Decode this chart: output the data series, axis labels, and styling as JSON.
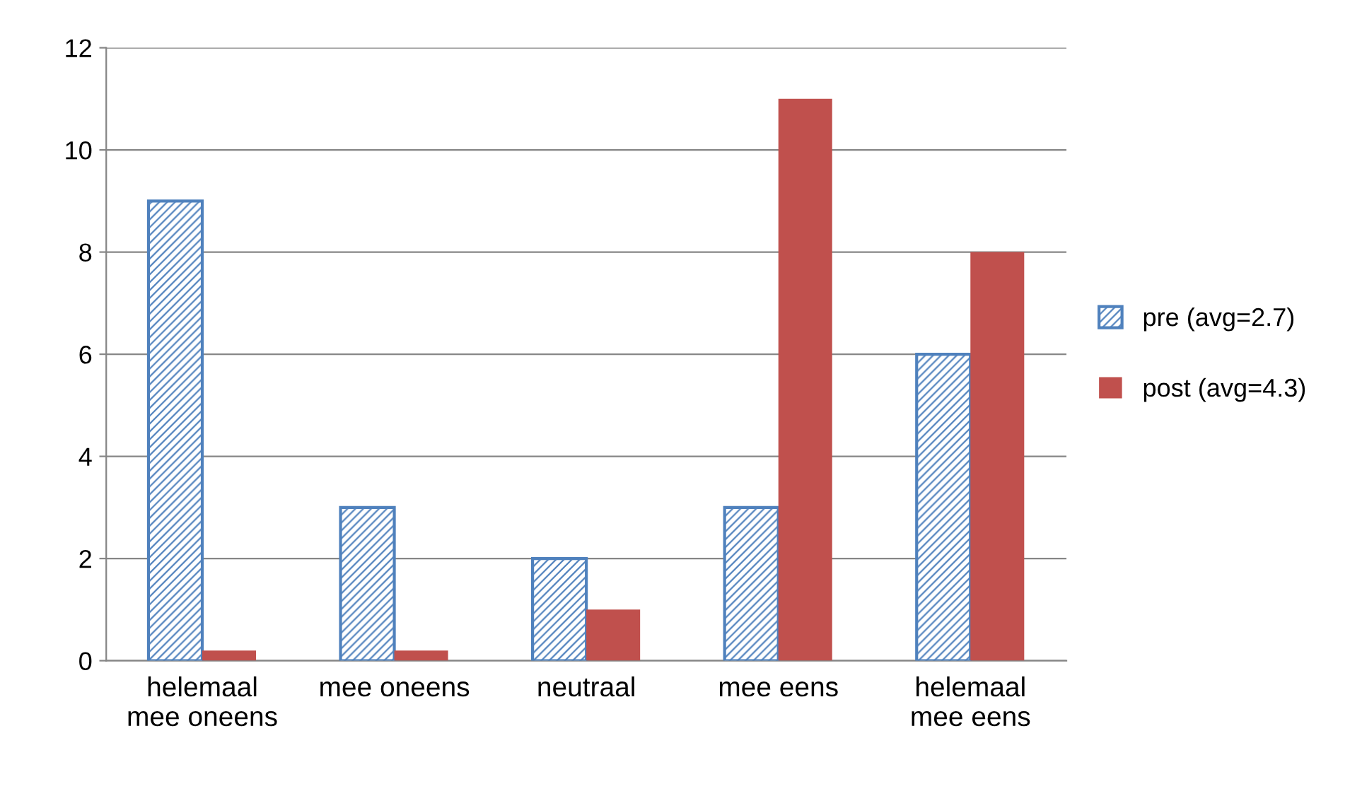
{
  "chart_data": {
    "type": "bar",
    "categories": [
      "helemaal\nmee oneens",
      "mee oneens",
      "neutraal",
      "mee eens",
      "helemaal\nmee eens"
    ],
    "series": [
      {
        "name": "pre (avg=2.7)",
        "color": "#4f81bd",
        "values": [
          9,
          3,
          2,
          3,
          6
        ]
      },
      {
        "name": "post (avg=4.3)",
        "color": "#c0504d",
        "values": [
          0.2,
          0.2,
          1,
          11,
          8
        ]
      }
    ],
    "ylim": [
      0,
      12
    ],
    "yticks": [
      0,
      2,
      4,
      6,
      8,
      10,
      12
    ],
    "grid": "y",
    "legend": "right"
  }
}
